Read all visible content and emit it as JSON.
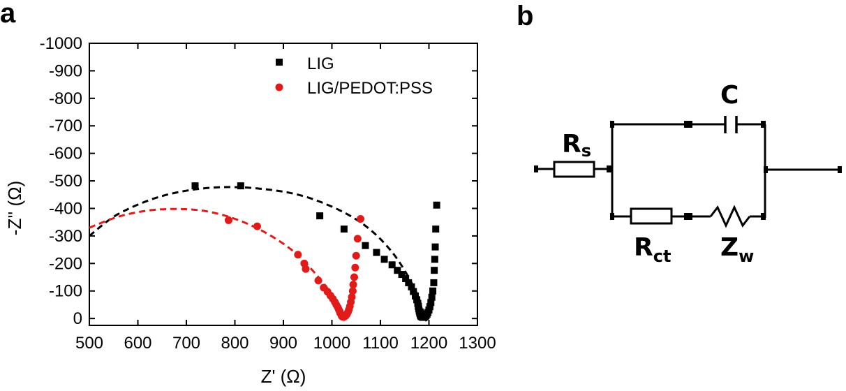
{
  "panels": {
    "a": "a",
    "b": "b"
  },
  "chart_data": {
    "type": "scatter",
    "title": "",
    "xlabel": "Z' (Ω)",
    "ylabel": "-Z'' (Ω)",
    "xlim": [
      500,
      1300
    ],
    "ylim": [
      25,
      -1000
    ],
    "x_ticks": [
      "500",
      "600",
      "700",
      "800",
      "900",
      "1000",
      "1100",
      "1200",
      "1300"
    ],
    "y_ticks": [
      "-1000",
      "-900",
      "-800",
      "-700",
      "-600",
      "-500",
      "-400",
      "-300",
      "-200",
      "-100",
      "0"
    ],
    "x_tick_values": [
      500,
      600,
      700,
      800,
      900,
      1000,
      1100,
      1200,
      1300
    ],
    "y_tick_values": [
      -1000,
      -900,
      -800,
      -700,
      -600,
      -500,
      -400,
      -300,
      -200,
      -100,
      0
    ],
    "legend_position": "top-right",
    "series": [
      {
        "name": "LIG",
        "color": "#000000",
        "marker": "square",
        "points": [
          [
            718,
            -482
          ],
          [
            812,
            -482
          ],
          [
            975,
            -373
          ],
          [
            1025,
            -325
          ],
          [
            1069,
            -265
          ],
          [
            1092,
            -240
          ],
          [
            1108,
            -215
          ],
          [
            1124,
            -195
          ],
          [
            1135,
            -175
          ],
          [
            1144,
            -160
          ],
          [
            1152,
            -145
          ],
          [
            1158,
            -130
          ],
          [
            1164,
            -115
          ],
          [
            1168,
            -98
          ],
          [
            1172,
            -82
          ],
          [
            1175,
            -68
          ],
          [
            1177,
            -55
          ],
          [
            1178,
            -44
          ],
          [
            1179,
            -35
          ],
          [
            1180,
            -27
          ],
          [
            1181,
            -20
          ],
          [
            1182,
            -14
          ],
          [
            1183,
            -10
          ],
          [
            1184,
            -7
          ],
          [
            1186,
            -5
          ],
          [
            1188,
            -4
          ],
          [
            1190,
            -5
          ],
          [
            1192,
            -7
          ],
          [
            1194,
            -10
          ],
          [
            1196,
            -15
          ],
          [
            1198,
            -22
          ],
          [
            1200,
            -31
          ],
          [
            1202,
            -43
          ],
          [
            1204,
            -58
          ],
          [
            1206,
            -77
          ],
          [
            1208,
            -100
          ],
          [
            1210,
            -130
          ],
          [
            1211,
            -175
          ],
          [
            1212,
            -215
          ],
          [
            1213,
            -260
          ],
          [
            1214,
            -325
          ],
          [
            1216,
            -412
          ]
        ],
        "fit": {
          "style": "dashed",
          "color": "#000000",
          "points": [
            [
              500,
              -300
            ],
            [
              560,
              -380
            ],
            [
              650,
              -445
            ],
            [
              750,
              -475
            ],
            [
              850,
              -472
            ],
            [
              950,
              -440
            ],
            [
              1050,
              -360
            ],
            [
              1120,
              -250
            ],
            [
              1170,
              -110
            ],
            [
              1195,
              10
            ]
          ]
        }
      },
      {
        "name": "LIG/PEDOT:PSS",
        "color": "#e11a1a",
        "marker": "circle",
        "points": [
          [
            787,
            -357
          ],
          [
            846,
            -335
          ],
          [
            930,
            -232
          ],
          [
            943,
            -200
          ],
          [
            946,
            -180
          ],
          [
            972,
            -138
          ],
          [
            983,
            -112
          ],
          [
            991,
            -97
          ],
          [
            997,
            -83
          ],
          [
            1002,
            -71
          ],
          [
            1006,
            -60
          ],
          [
            1009,
            -50
          ],
          [
            1012,
            -41
          ],
          [
            1014,
            -33
          ],
          [
            1016,
            -26
          ],
          [
            1017,
            -20
          ],
          [
            1019,
            -14
          ],
          [
            1020,
            -10
          ],
          [
            1021,
            -7
          ],
          [
            1023,
            -6
          ],
          [
            1025,
            -6
          ],
          [
            1027,
            -8
          ],
          [
            1029,
            -11
          ],
          [
            1031,
            -16
          ],
          [
            1033,
            -23
          ],
          [
            1035,
            -32
          ],
          [
            1037,
            -44
          ],
          [
            1039,
            -60
          ],
          [
            1041,
            -78
          ],
          [
            1043,
            -100
          ],
          [
            1044,
            -123
          ],
          [
            1046,
            -150
          ],
          [
            1048,
            -185
          ],
          [
            1050,
            -228
          ],
          [
            1053,
            -290
          ],
          [
            1059,
            -362
          ]
        ],
        "fit": {
          "style": "dashed",
          "color": "#e11a1a",
          "points": [
            [
              500,
              -330
            ],
            [
              560,
              -370
            ],
            [
              620,
              -392
            ],
            [
              680,
              -398
            ],
            [
              740,
              -390
            ],
            [
              800,
              -362
            ],
            [
              860,
              -315
            ],
            [
              920,
              -245
            ],
            [
              970,
              -155
            ],
            [
              1000,
              -85
            ],
            [
              1015,
              -30
            ],
            [
              1025,
              10
            ]
          ]
        }
      }
    ]
  },
  "circuit": {
    "Rs": {
      "main": "R",
      "sub": "s"
    },
    "C": {
      "main": "C",
      "sub": ""
    },
    "Rct": {
      "main": "R",
      "sub": "ct"
    },
    "Zw": {
      "main": "Z",
      "sub": "w"
    }
  }
}
